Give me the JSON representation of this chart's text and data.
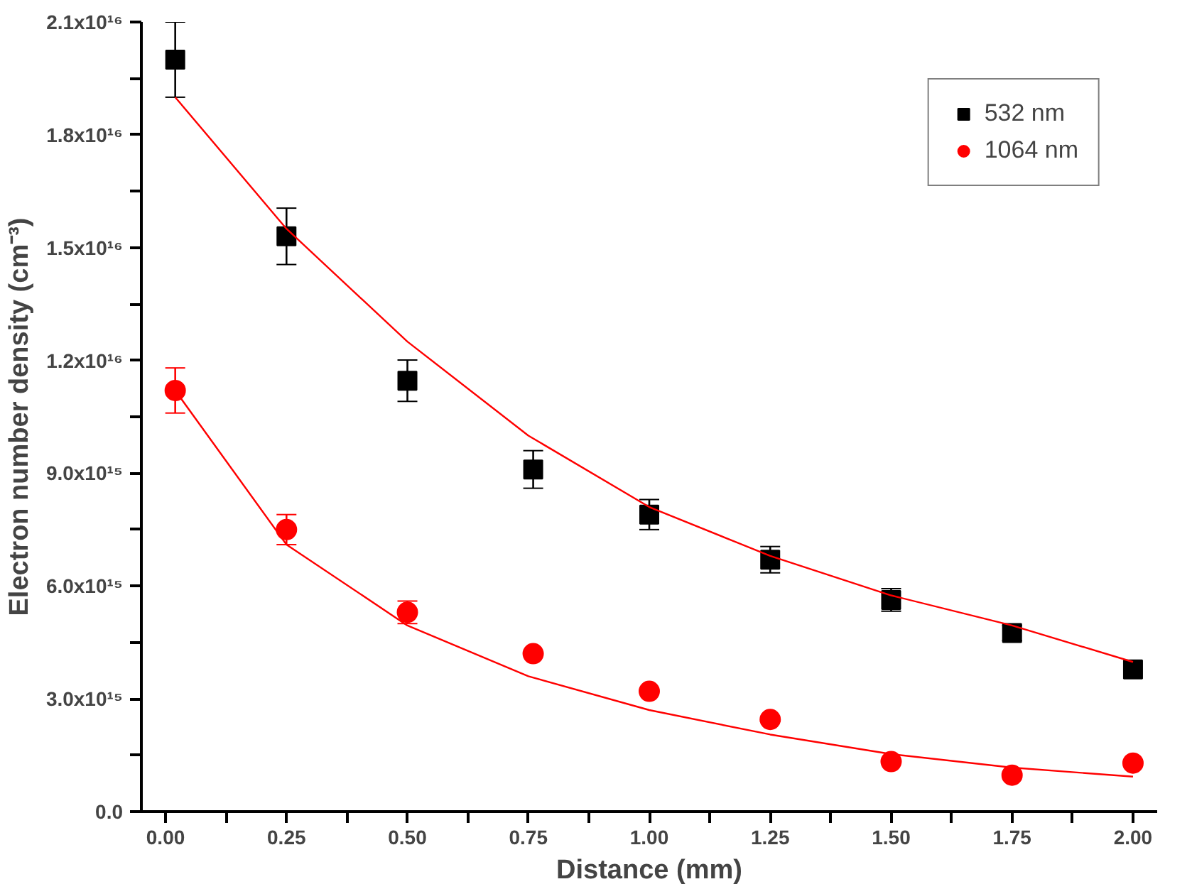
{
  "chart_data": {
    "type": "scatter",
    "xlabel": "Distance (mm)",
    "ylabel": "Electron number density (cm⁻³)",
    "xlim": [
      -0.05,
      2.05
    ],
    "ylim": [
      0,
      2.1e+16
    ],
    "xticks": [
      {
        "value": 0,
        "label": "0.00"
      },
      {
        "value": 0.125,
        "label": null
      },
      {
        "value": 0.25,
        "label": "0.25"
      },
      {
        "value": 0.375,
        "label": null
      },
      {
        "value": 0.5,
        "label": "0.50"
      },
      {
        "value": 0.625,
        "label": null
      },
      {
        "value": 0.75,
        "label": "0.75"
      },
      {
        "value": 0.875,
        "label": null
      },
      {
        "value": 1,
        "label": "1.00"
      },
      {
        "value": 1.125,
        "label": null
      },
      {
        "value": 1.25,
        "label": "1.25"
      },
      {
        "value": 1.375,
        "label": null
      },
      {
        "value": 1.5,
        "label": "1.50"
      },
      {
        "value": 1.625,
        "label": null
      },
      {
        "value": 1.75,
        "label": "1.75"
      },
      {
        "value": 1.875,
        "label": null
      },
      {
        "value": 2,
        "label": "2.00"
      }
    ],
    "yticks": [
      {
        "value": 0,
        "label": "0.0"
      },
      {
        "value": 1500000000000000.0,
        "label": null
      },
      {
        "value": 3000000000000000.0,
        "label": "3.0x10¹⁵"
      },
      {
        "value": 4500000000000000.0,
        "label": null
      },
      {
        "value": 6000000000000000.0,
        "label": "6.0x10¹⁵"
      },
      {
        "value": 7500000000000000.0,
        "label": null
      },
      {
        "value": 9000000000000000.0,
        "label": "9.0x10¹⁵"
      },
      {
        "value": 1.05e+16,
        "label": null
      },
      {
        "value": 1.2e+16,
        "label": "1.2x10¹⁶"
      },
      {
        "value": 1.35e+16,
        "label": null
      },
      {
        "value": 1.5e+16,
        "label": "1.5x10¹⁶"
      },
      {
        "value": 1.65e+16,
        "label": null
      },
      {
        "value": 1.8e+16,
        "label": "1.8x10¹⁶"
      },
      {
        "value": 1.95e+16,
        "label": null
      },
      {
        "value": 2.1e+16,
        "label": "2.1x10¹⁶"
      }
    ],
    "legend": "top right",
    "series": [
      {
        "name": "532 nm",
        "marker": "square",
        "color": "#000000",
        "x": [
          0.02,
          0.25,
          0.5,
          0.76,
          1.0,
          1.25,
          1.5,
          1.75,
          2.0
        ],
        "values": [
          2e+16,
          1.53e+16,
          1.146e+16,
          9100000000000000.0,
          7900000000000000.0,
          6700000000000000.0,
          5630000000000000.0,
          4750000000000000.0,
          3780000000000000.0
        ],
        "errors": [
          1000000000000000.0,
          750000000000000.0,
          550000000000000.0,
          500000000000000.0,
          400000000000000.0,
          350000000000000.0,
          300000000000000.0,
          200000000000000.0,
          null
        ]
      },
      {
        "name": "1064 nm",
        "marker": "circle",
        "color": "#ff0000",
        "x": [
          0.02,
          0.25,
          0.5,
          0.76,
          1.0,
          1.25,
          1.5,
          1.75,
          2.0
        ],
        "values": [
          1.12e+16,
          7500000000000000.0,
          5300000000000000.0,
          4200000000000000.0,
          3200000000000000.0,
          2450000000000000.0,
          1330000000000000.0,
          970000000000000.0,
          1290000000000000.0
        ],
        "errors": [
          600000000000000.0,
          400000000000000.0,
          300000000000000.0,
          null,
          null,
          null,
          null,
          null,
          null
        ]
      },
      {
        "type": "line",
        "color": "#ff0000",
        "x": [
          0.02,
          0.25,
          0.5,
          0.75,
          1.0,
          1.25,
          1.5,
          1.75,
          2.0
        ],
        "values": [
          1.9e+16,
          1.55e+16,
          1.25e+16,
          1e+16,
          8100000000000000.0,
          6800000000000000.0,
          5750000000000000.0,
          4950000000000000.0,
          3980000000000000.0
        ]
      },
      {
        "type": "line",
        "color": "#ff0000",
        "x": [
          0.02,
          0.25,
          0.5,
          0.75,
          1.0,
          1.25,
          1.5,
          1.75,
          2.0
        ],
        "values": [
          1.12e+16,
          7100000000000000.0,
          4950000000000000.0,
          3600000000000000.0,
          2700000000000000.0,
          2050000000000000.0,
          1530000000000000.0,
          1170000000000000.0,
          930000000000000.0
        ]
      }
    ]
  }
}
